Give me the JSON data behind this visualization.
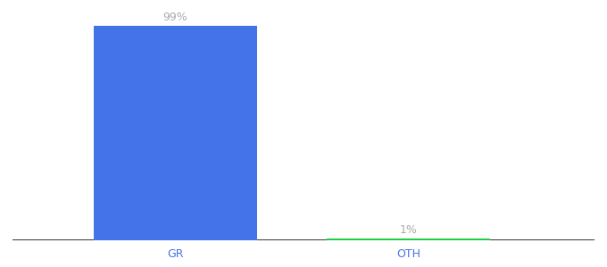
{
  "categories": [
    "GR",
    "OTH"
  ],
  "values": [
    99,
    1
  ],
  "bar_colors": [
    "#4472e8",
    "#22cc44"
  ],
  "label_texts": [
    "99%",
    "1%"
  ],
  "label_color": "#aaaaaa",
  "xlabel_color": "#4472e8",
  "background_color": "#ffffff",
  "ylim": [
    0,
    107
  ],
  "bar_width": 0.28,
  "label_fontsize": 9,
  "xlabel_fontsize": 9,
  "figsize": [
    6.8,
    3.0
  ],
  "dpi": 100,
  "x_positions": [
    0.28,
    0.68
  ],
  "xlim": [
    0.0,
    1.0
  ],
  "baseline_color": "#111111",
  "baseline_lw": 1.2
}
